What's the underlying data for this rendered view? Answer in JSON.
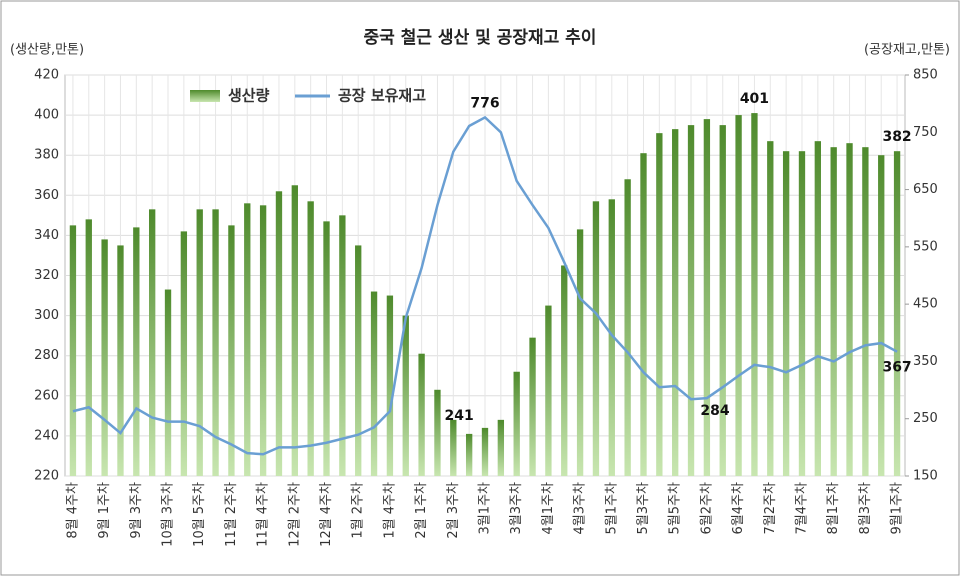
{
  "chart_data": {
    "type": "bar_line",
    "title": "중국 철근 생산 및 공장재고 추이",
    "y_label": "(생산량,만톤)",
    "y2_label": "(공장재고,만톤)",
    "categories": [
      "8월 4주차",
      null,
      "9월 1주차",
      null,
      "9월 3주차",
      null,
      "10월 3주차",
      null,
      "10월 5주차",
      null,
      "11월 2주차",
      null,
      "11월 4주차",
      null,
      "12월 2주차",
      null,
      "12월 4주차",
      null,
      "1월 2주차",
      null,
      "1월 4주차",
      null,
      "2월 1주차",
      null,
      "2월 3주차",
      null,
      "3월1주차",
      null,
      "3월3주차",
      null,
      "4월1주차",
      null,
      "4월3주차",
      null,
      "5월1주차",
      null,
      "5월3주차",
      null,
      "5월5주차",
      null,
      "6월2주차",
      null,
      "6월4주차",
      null,
      "7월2주차",
      null,
      "7월4주차",
      null,
      "8월1주차",
      null,
      "8월3주차",
      null,
      "9월1주차"
    ],
    "series": [
      {
        "name": "생산량",
        "type": "bar",
        "color": "#4e8a2c",
        "axis": "y",
        "values": [
          345,
          348,
          338,
          335,
          344,
          353,
          313,
          342,
          353,
          353,
          345,
          356,
          355,
          362,
          365,
          357,
          347,
          350,
          335,
          312,
          310,
          300,
          281,
          263,
          248,
          241,
          244,
          248,
          272,
          289,
          305,
          325,
          343,
          357,
          358,
          368,
          381,
          391,
          393,
          395,
          398,
          395,
          400,
          401,
          387,
          382,
          382,
          387,
          384,
          386,
          384,
          380,
          382
        ],
        "data_labels": [
          25,
          43,
          52
        ]
      },
      {
        "name": "공장 보유재고",
        "type": "line",
        "color": "#6a9fd3",
        "axis": "y2",
        "values": [
          263,
          270,
          248,
          225,
          268,
          252,
          245,
          245,
          237,
          218,
          205,
          190,
          188,
          200,
          200,
          203,
          208,
          215,
          222,
          235,
          263,
          426,
          513,
          623,
          716,
          761,
          776,
          750,
          665,
          623,
          583,
          523,
          460,
          434,
          396,
          366,
          331,
          305,
          307,
          284,
          286,
          305,
          325,
          344,
          340,
          331,
          344,
          359,
          350,
          366,
          378,
          382,
          367
        ],
        "data_labels": [
          26,
          39,
          52
        ]
      }
    ],
    "ylim": [
      220,
      420
    ],
    "yticks": [
      220,
      240,
      260,
      280,
      300,
      320,
      340,
      360,
      380,
      400,
      420
    ],
    "y2lim": [
      150,
      850
    ],
    "y2ticks": [
      150,
      250,
      350,
      450,
      550,
      650,
      750,
      850
    ],
    "xgrid": true,
    "legend": "top-left"
  }
}
